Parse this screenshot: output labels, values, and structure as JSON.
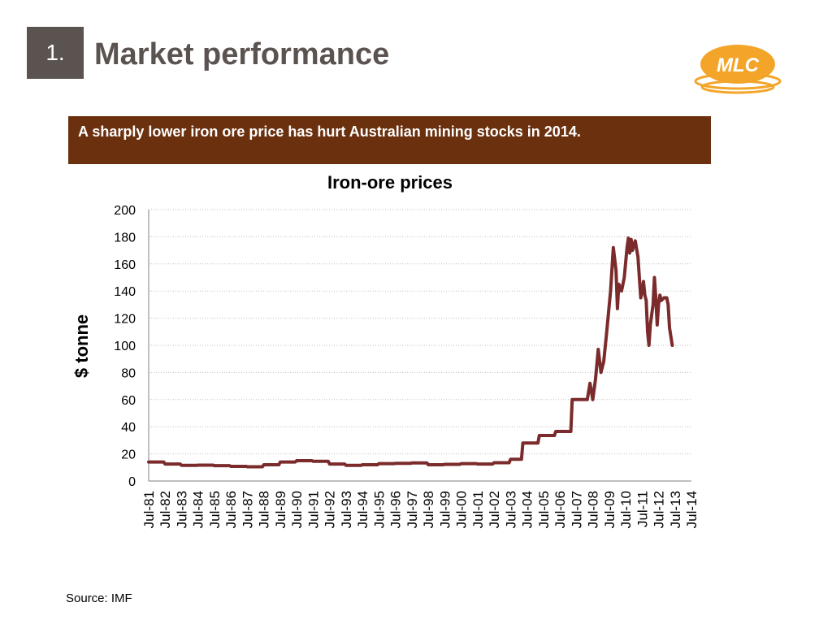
{
  "slide": {
    "number": "1.",
    "title": "Market performance",
    "banner_text": "A sharply lower iron ore price has hurt Australian mining stocks in 2014.",
    "source": "Source: IMF"
  },
  "logo": {
    "text": "MLC",
    "icon": "mlc-logo",
    "color": "#f3a52a"
  },
  "colors": {
    "banner_bg": "#6b310f",
    "number_box_bg": "#5a5350",
    "title_text": "#5a5350",
    "series_line": "#7b2b2b"
  },
  "chart_data": {
    "type": "line",
    "title": "Iron-ore prices",
    "xlabel": "",
    "ylabel": "$ tonne",
    "ylim": [
      0,
      200
    ],
    "yticks": [
      0,
      20,
      40,
      60,
      80,
      100,
      120,
      140,
      160,
      180,
      200
    ],
    "grid": true,
    "legend": "none",
    "categories": [
      "Jul-81",
      "Jul-82",
      "Jul-83",
      "Jul-84",
      "Jul-85",
      "Jul-86",
      "Jul-87",
      "Jul-88",
      "Jul-89",
      "Jul-90",
      "Jul-91",
      "Jul-92",
      "Jul-93",
      "Jul-94",
      "Jul-95",
      "Jul-96",
      "Jul-97",
      "Jul-98",
      "Jul-99",
      "Jul-00",
      "Jul-01",
      "Jul-02",
      "Jul-03",
      "Jul-04",
      "Jul-05",
      "Jul-06",
      "Jul-07",
      "Jul-08",
      "Jul-09",
      "Jul-10",
      "Jul-11",
      "Jul-12",
      "Jul-13",
      "Jul-14"
    ],
    "series": [
      {
        "name": "",
        "points": [
          [
            "1981-07",
            14
          ],
          [
            "1982-06",
            14
          ],
          [
            "1982-07",
            12.5
          ],
          [
            "1983-06",
            12.5
          ],
          [
            "1983-07",
            11.5
          ],
          [
            "1984-06",
            11.5
          ],
          [
            "1984-07",
            11.7
          ],
          [
            "1985-06",
            11.7
          ],
          [
            "1985-07",
            11.3
          ],
          [
            "1986-06",
            11.3
          ],
          [
            "1986-07",
            10.8
          ],
          [
            "1987-06",
            10.8
          ],
          [
            "1987-07",
            10.5
          ],
          [
            "1988-06",
            10.5
          ],
          [
            "1988-07",
            12
          ],
          [
            "1989-06",
            12
          ],
          [
            "1989-07",
            14
          ],
          [
            "1990-06",
            14
          ],
          [
            "1990-07",
            15
          ],
          [
            "1991-06",
            15
          ],
          [
            "1991-07",
            14.5
          ],
          [
            "1992-06",
            14.5
          ],
          [
            "1992-07",
            12.5
          ],
          [
            "1993-06",
            12.5
          ],
          [
            "1993-07",
            11.5
          ],
          [
            "1994-06",
            11.5
          ],
          [
            "1994-07",
            12
          ],
          [
            "1995-06",
            12
          ],
          [
            "1995-07",
            12.8
          ],
          [
            "1996-06",
            12.8
          ],
          [
            "1996-07",
            13
          ],
          [
            "1997-06",
            13
          ],
          [
            "1997-07",
            13.3
          ],
          [
            "1998-06",
            13.3
          ],
          [
            "1998-07",
            12
          ],
          [
            "1999-06",
            12
          ],
          [
            "1999-07",
            12.3
          ],
          [
            "2000-06",
            12.3
          ],
          [
            "2000-07",
            12.8
          ],
          [
            "2001-06",
            12.8
          ],
          [
            "2001-07",
            12.5
          ],
          [
            "2002-06",
            12.5
          ],
          [
            "2002-07",
            13.5
          ],
          [
            "2003-06",
            13.5
          ],
          [
            "2003-07",
            16
          ],
          [
            "2004-03",
            16
          ],
          [
            "2004-04",
            28
          ],
          [
            "2005-03",
            28
          ],
          [
            "2005-04",
            33.5
          ],
          [
            "2006-03",
            33.5
          ],
          [
            "2006-04",
            36.5
          ],
          [
            "2007-03",
            36.5
          ],
          [
            "2007-04",
            60
          ],
          [
            "2008-03",
            60
          ],
          [
            "2008-05",
            72
          ],
          [
            "2008-07",
            60
          ],
          [
            "2008-09",
            75
          ],
          [
            "2008-11",
            97
          ],
          [
            "2009-01",
            80
          ],
          [
            "2009-03",
            88
          ],
          [
            "2009-05",
            108
          ],
          [
            "2009-08",
            140
          ],
          [
            "2009-10",
            172
          ],
          [
            "2009-12",
            155
          ],
          [
            "2010-01",
            127
          ],
          [
            "2010-02",
            145
          ],
          [
            "2010-04",
            140
          ],
          [
            "2010-06",
            150
          ],
          [
            "2010-08",
            172
          ],
          [
            "2010-09",
            179
          ],
          [
            "2010-10",
            168
          ],
          [
            "2010-11",
            178
          ],
          [
            "2010-12",
            170
          ],
          [
            "2011-02",
            177
          ],
          [
            "2011-04",
            165
          ],
          [
            "2011-05",
            150
          ],
          [
            "2011-06",
            135
          ],
          [
            "2011-07",
            140
          ],
          [
            "2011-08",
            147
          ],
          [
            "2011-09",
            137
          ],
          [
            "2011-10",
            133
          ],
          [
            "2011-11",
            110
          ],
          [
            "2011-12",
            100
          ],
          [
            "2012-01",
            115
          ],
          [
            "2012-03",
            130
          ],
          [
            "2012-04",
            150
          ],
          [
            "2012-05",
            135
          ],
          [
            "2012-06",
            115
          ],
          [
            "2012-07",
            130
          ],
          [
            "2012-08",
            137
          ],
          [
            "2012-09",
            133
          ],
          [
            "2012-11",
            135
          ],
          [
            "2013-01",
            135
          ],
          [
            "2013-02",
            130
          ],
          [
            "2013-03",
            113
          ],
          [
            "2013-05",
            100
          ]
        ]
      }
    ]
  }
}
